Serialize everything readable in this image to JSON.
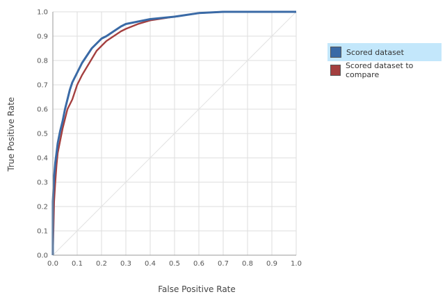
{
  "chart_data": {
    "type": "line",
    "title": "",
    "xlabel": "False Positive Rate",
    "ylabel": "True Positive Rate",
    "xlim": [
      0,
      1.0
    ],
    "ylim": [
      0,
      1.0
    ],
    "x_ticks": [
      "0.0",
      "0.1",
      "0.2",
      "0.3",
      "0.4",
      "0.5",
      "0.6",
      "0.7",
      "0.8",
      "0.9",
      "1.0"
    ],
    "y_ticks": [
      "0.0",
      "0.1",
      "0.2",
      "0.3",
      "0.4",
      "0.5",
      "0.6",
      "0.7",
      "0.8",
      "0.9",
      "1.0"
    ],
    "grid": true,
    "legend_placement": "right",
    "diagonal_reference": true,
    "series": [
      {
        "name": "Scored dataset",
        "color": "#3a6aa6",
        "x": [
          0.0,
          0.0,
          0.005,
          0.01,
          0.015,
          0.02,
          0.03,
          0.04,
          0.05,
          0.06,
          0.07,
          0.08,
          0.1,
          0.12,
          0.14,
          0.16,
          0.18,
          0.2,
          0.22,
          0.25,
          0.28,
          0.3,
          0.35,
          0.4,
          0.5,
          0.6,
          0.7,
          0.8,
          0.9,
          1.0
        ],
        "y": [
          0.0,
          0.22,
          0.32,
          0.38,
          0.42,
          0.46,
          0.51,
          0.55,
          0.6,
          0.64,
          0.68,
          0.71,
          0.75,
          0.79,
          0.82,
          0.85,
          0.87,
          0.89,
          0.9,
          0.92,
          0.94,
          0.95,
          0.96,
          0.97,
          0.98,
          0.995,
          1.0,
          1.0,
          1.0,
          1.0
        ]
      },
      {
        "name": "Scored dataset to compare",
        "color": "#a43f3f",
        "x": [
          0.0,
          0.005,
          0.01,
          0.015,
          0.02,
          0.03,
          0.04,
          0.05,
          0.06,
          0.08,
          0.1,
          0.12,
          0.15,
          0.18,
          0.2,
          0.22,
          0.25,
          0.28,
          0.3,
          0.35,
          0.4,
          0.5,
          0.6,
          0.7,
          0.8,
          0.9,
          1.0
        ],
        "y": [
          0.0,
          0.22,
          0.3,
          0.37,
          0.42,
          0.47,
          0.52,
          0.56,
          0.6,
          0.64,
          0.7,
          0.74,
          0.79,
          0.84,
          0.86,
          0.88,
          0.9,
          0.92,
          0.93,
          0.95,
          0.965,
          0.98,
          0.995,
          1.0,
          1.0,
          1.0,
          1.0
        ]
      }
    ]
  },
  "legend": {
    "items": [
      {
        "label": "Scored dataset",
        "color": "#3a6aa6",
        "selected": true
      },
      {
        "label": "Scored dataset to compare",
        "color": "#a43f3f",
        "selected": false
      }
    ]
  },
  "colors": {
    "grid": "#dddddd",
    "axis": "#999999",
    "diagonal": "#e3e3e3",
    "selected_bg": "#c3e7fb"
  }
}
